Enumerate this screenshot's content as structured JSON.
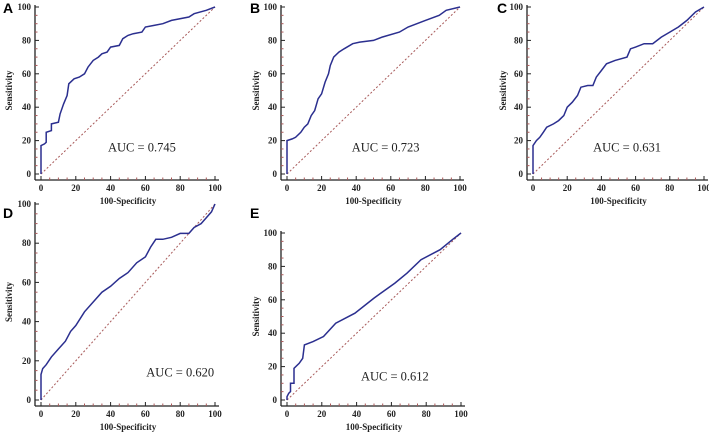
{
  "colors": {
    "curve": "#2b2f8f",
    "diagonal": "#a85a5a",
    "axis": "#222222",
    "tick": "#a85a5a"
  },
  "chart_data": [
    {
      "type": "line",
      "panel": "A",
      "xlabel": "100-Specificity",
      "ylabel": "Sensitivity",
      "xlim": [
        0,
        100
      ],
      "ylim": [
        0,
        100
      ],
      "xticks": [
        "0",
        "20",
        "40",
        "60",
        "80",
        "100"
      ],
      "yticks": [
        "0",
        "20",
        "40",
        "60",
        "80",
        "100"
      ],
      "annotation": {
        "text": "AUC = 0.745",
        "x": 58,
        "y": 16
      },
      "series": [
        {
          "name": "ROC",
          "x": [
            0,
            0,
            2,
            3,
            3,
            6,
            6,
            10,
            11,
            13,
            15,
            16,
            19,
            22,
            25,
            27,
            30,
            33,
            35,
            38,
            40,
            45,
            47,
            50,
            53,
            58,
            60,
            65,
            70,
            75,
            85,
            88,
            95,
            100
          ],
          "y": [
            0,
            17,
            18,
            19,
            25,
            26,
            30,
            31,
            36,
            42,
            47,
            54,
            57,
            58,
            60,
            64,
            68,
            70,
            72,
            73,
            76,
            77,
            81,
            83,
            84,
            85,
            88,
            89,
            90,
            92,
            94,
            96,
            98,
            100
          ]
        },
        {
          "name": "Reference",
          "x": [
            0,
            100
          ],
          "y": [
            0,
            100
          ]
        }
      ]
    },
    {
      "type": "line",
      "panel": "B",
      "xlabel": "100-Specificity",
      "ylabel": "Sensitivity",
      "xlim": [
        0,
        100
      ],
      "ylim": [
        0,
        100
      ],
      "xticks": [
        "0",
        "20",
        "40",
        "60",
        "80",
        "100"
      ],
      "yticks": [
        "0",
        "20",
        "40",
        "60",
        "80",
        "100"
      ],
      "annotation": {
        "text": "AUC = 0.723",
        "x": 57,
        "y": 16
      },
      "series": [
        {
          "name": "ROC",
          "x": [
            0,
            0,
            3,
            5,
            8,
            10,
            12,
            14,
            16,
            18,
            20,
            22,
            24,
            25,
            27,
            30,
            33,
            38,
            42,
            50,
            55,
            65,
            70,
            80,
            88,
            92,
            100
          ],
          "y": [
            0,
            20,
            21,
            22,
            25,
            28,
            30,
            35,
            38,
            45,
            48,
            55,
            60,
            65,
            70,
            73,
            75,
            78,
            79,
            80,
            82,
            85,
            88,
            92,
            95,
            98,
            100
          ]
        },
        {
          "name": "Reference",
          "x": [
            0,
            100
          ],
          "y": [
            0,
            100
          ]
        }
      ]
    },
    {
      "type": "line",
      "panel": "C",
      "xlabel": "100-Specificity",
      "ylabel": "Sensitivity",
      "xlim": [
        0,
        100
      ],
      "ylim": [
        0,
        100
      ],
      "xticks": [
        "0",
        "20",
        "40",
        "60",
        "80",
        "100"
      ],
      "yticks": [
        "0",
        "20",
        "40",
        "60",
        "80",
        "100"
      ],
      "annotation": {
        "text": "AUC = 0.631",
        "x": 55,
        "y": 16
      },
      "series": [
        {
          "name": "ROC",
          "x": [
            0,
            0,
            2,
            4,
            6,
            8,
            12,
            15,
            18,
            20,
            23,
            26,
            28,
            32,
            35,
            37,
            40,
            43,
            48,
            55,
            57,
            60,
            65,
            70,
            75,
            80,
            85,
            90,
            95,
            100
          ],
          "y": [
            0,
            17,
            20,
            22,
            25,
            28,
            30,
            32,
            35,
            40,
            43,
            47,
            52,
            53,
            53,
            58,
            62,
            66,
            68,
            70,
            75,
            76,
            78,
            78,
            82,
            85,
            88,
            92,
            97,
            100
          ]
        },
        {
          "name": "Reference",
          "x": [
            0,
            100
          ],
          "y": [
            0,
            100
          ]
        }
      ]
    },
    {
      "type": "line",
      "panel": "D",
      "xlabel": "100-Specificity",
      "ylabel": "Sensitivity",
      "xlim": [
        0,
        100
      ],
      "ylim": [
        0,
        100
      ],
      "xticks": [
        "0",
        "20",
        "40",
        "60",
        "80",
        "100"
      ],
      "yticks": [
        "0",
        "20",
        "40",
        "60",
        "80",
        "100"
      ],
      "annotation": {
        "text": "AUC = 0.620",
        "x": 80,
        "y": 14
      },
      "series": [
        {
          "name": "ROC",
          "x": [
            0,
            0,
            1,
            3,
            6,
            10,
            14,
            17,
            20,
            25,
            30,
            35,
            40,
            45,
            50,
            55,
            60,
            63,
            66,
            70,
            75,
            80,
            85,
            88,
            92,
            95,
            98,
            100
          ],
          "y": [
            0,
            13,
            16,
            18,
            22,
            26,
            30,
            35,
            38,
            45,
            50,
            55,
            58,
            62,
            65,
            70,
            73,
            78,
            82,
            82,
            83,
            85,
            85,
            88,
            90,
            93,
            96,
            100
          ]
        },
        {
          "name": "Reference",
          "x": [
            0,
            100
          ],
          "y": [
            0,
            100
          ]
        }
      ]
    },
    {
      "type": "line",
      "panel": "E",
      "xlabel": "100-Specificity",
      "ylabel": "Sensitivity",
      "xlim": [
        0,
        100
      ],
      "ylim": [
        0,
        100
      ],
      "xticks": [
        "0",
        "20",
        "40",
        "60",
        "80",
        "100"
      ],
      "yticks": [
        "0",
        "20",
        "40",
        "60",
        "80",
        "100"
      ],
      "annotation": {
        "text": "AUC = 0.612",
        "x": 62,
        "y": 14
      },
      "series": [
        {
          "name": "ROC",
          "x": [
            0,
            0,
            1,
            2,
            2,
            4,
            4,
            7,
            9,
            10,
            15,
            21,
            28,
            39,
            50,
            62,
            69,
            77,
            88,
            95,
            100
          ],
          "y": [
            0,
            2,
            4,
            5,
            10,
            10,
            19,
            22,
            25,
            33,
            35,
            38,
            46,
            52,
            61,
            70,
            76,
            84,
            90,
            96,
            100
          ]
        },
        {
          "name": "Reference",
          "x": [
            0,
            100
          ],
          "y": [
            0,
            100
          ]
        }
      ]
    }
  ]
}
